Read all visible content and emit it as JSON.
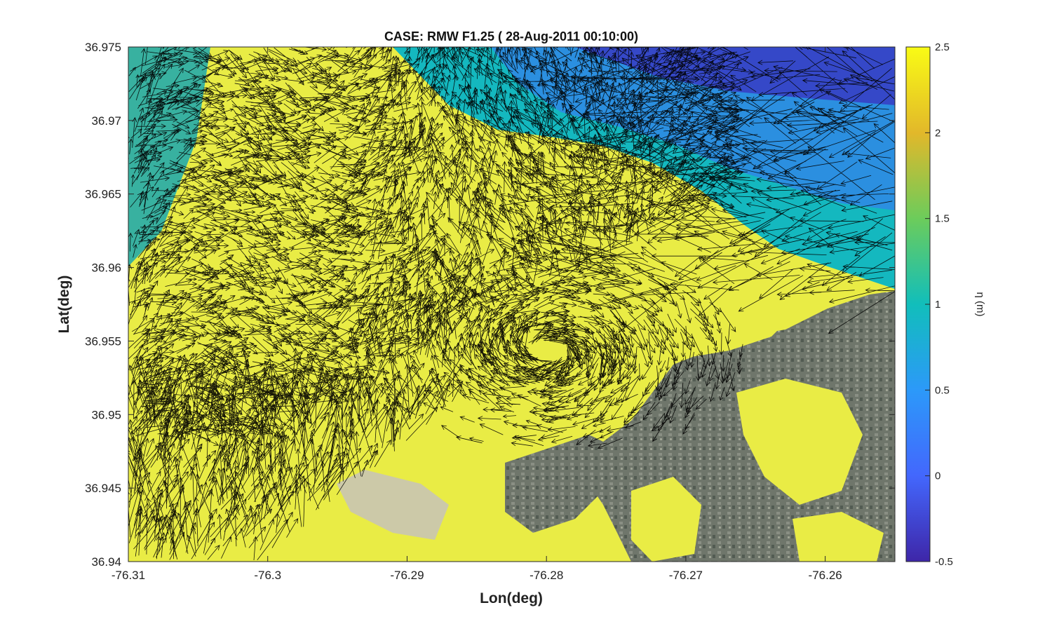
{
  "chart_data": {
    "type": "heatmap",
    "title": "CASE: RMW F1.25 ( 28-Aug-2011 00:10:00)",
    "xlabel": "Lon(deg)",
    "ylabel": "Lat(deg)",
    "xlim": [
      -76.31,
      -76.255
    ],
    "ylim": [
      36.94,
      36.975
    ],
    "x_ticks": [
      -76.31,
      -76.3,
      -76.29,
      -76.28,
      -76.27,
      -76.26
    ],
    "x_tick_labels": [
      "-76.31",
      "-76.3",
      "-76.29",
      "-76.28",
      "-76.27",
      "-76.26"
    ],
    "y_ticks": [
      36.94,
      36.945,
      36.95,
      36.955,
      36.96,
      36.965,
      36.97,
      36.975
    ],
    "y_tick_labels": [
      "36.94",
      "36.945",
      "36.95",
      "36.955",
      "36.96",
      "36.965",
      "36.97",
      "36.975"
    ],
    "colorbar": {
      "label": "η (m)",
      "range": [
        -0.5,
        2.5
      ],
      "ticks": [
        -0.5,
        0,
        0.5,
        1,
        1.5,
        2,
        2.5
      ],
      "tick_labels": [
        "-0.5",
        "0",
        "0.5",
        "1",
        "1.5",
        "2",
        "2.5"
      ],
      "colormap": [
        "#3e26a8",
        "#4367fd",
        "#2c99f9",
        "#11bebb",
        "#6ccc5b",
        "#e2b82a",
        "#f9fb15"
      ]
    },
    "overlay": "velocity quiver arrows over satellite imagery"
  }
}
